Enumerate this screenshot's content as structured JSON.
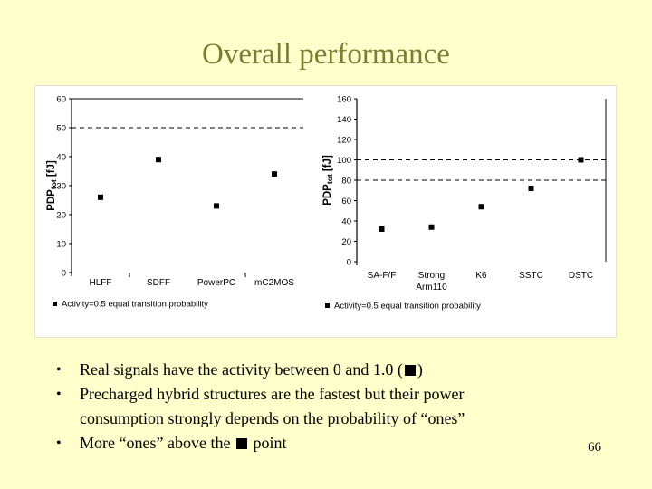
{
  "slide": {
    "title": "Overall performance",
    "page_number": "66"
  },
  "bullets": [
    {
      "segments": [
        {
          "t": "Real signals have the activity between 0 and 1.0 ("
        },
        {
          "square": true
        },
        {
          "t": ")"
        }
      ]
    },
    {
      "segments": [
        {
          "t": "Precharged hybrid structures are the fastest but their power consumption strongly depends on the probability of “ones”"
        }
      ]
    },
    {
      "segments": [
        {
          "t": "More “ones” above the "
        },
        {
          "square": true
        },
        {
          "t": " point"
        }
      ]
    }
  ],
  "chart_data": [
    {
      "type": "scatter",
      "title": "",
      "xlabel": "",
      "ylabel": {
        "prefix": "PDP",
        "sub": "tot",
        "suffix": " [fJ]"
      },
      "categories": [
        "HLFF",
        "SDFF",
        "PowerPC",
        "mC2MOS"
      ],
      "values": [
        26,
        39,
        23,
        34
      ],
      "ylim": [
        0,
        60
      ],
      "ytick_step": 10,
      "yticks": [
        0,
        10,
        20,
        30,
        40,
        50,
        60
      ],
      "dashed_lines": [
        50
      ],
      "top_border": true,
      "right_border": false,
      "grid": "dashed-reference-lines-only",
      "legend": "Activity=0.5 equal transition probability",
      "legend_position": "bottom-left",
      "marker": "black-square",
      "marker_color": "#000000"
    },
    {
      "type": "scatter",
      "title": "",
      "xlabel": "",
      "ylabel": {
        "prefix": "PDP",
        "sub": "tot",
        "suffix": " [fJ]"
      },
      "categories": [
        "SA-F/F",
        "Strong\nArm110",
        "K6",
        "SSTC",
        "DSTC"
      ],
      "values": [
        32,
        34,
        54,
        72,
        100
      ],
      "ylim": [
        0,
        160
      ],
      "ytick_step": 20,
      "yticks": [
        0,
        20,
        40,
        60,
        80,
        100,
        120,
        140,
        160
      ],
      "dashed_lines": [
        80,
        100
      ],
      "top_border": false,
      "right_border": true,
      "grid": "dashed-reference-lines-only",
      "legend": "Activity=0.5 equal transition probability",
      "legend_position": "bottom-left",
      "marker": "black-square",
      "marker_color": "#000000"
    }
  ],
  "colors": {
    "background": "#FFFFCC",
    "panel": "#FFFFFF",
    "title": "#7C7C33",
    "ink": "#000000"
  }
}
